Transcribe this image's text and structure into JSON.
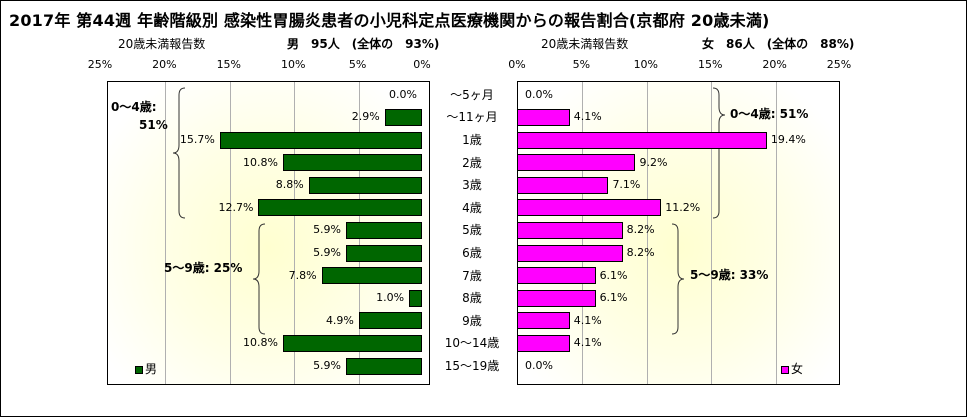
{
  "title": "2017年 第44週 年齢階級別 感染性胃腸炎患者の小児科定点医療機関からの報告割合(京都府 20歳未満)",
  "left_header": {
    "caption": "20歳未満報告数",
    "summary": "男　95人　(全体の　93%)"
  },
  "right_header": {
    "caption": "20歳未満報告数",
    "summary": "女　86人　(全体の　88%)"
  },
  "axis_ticks_left": [
    "25%",
    "20%",
    "15%",
    "10%",
    "5%",
    "0%"
  ],
  "axis_ticks_right": [
    "0%",
    "5%",
    "10%",
    "15%",
    "20%",
    "25%"
  ],
  "legend": {
    "male": "男",
    "female": "女"
  },
  "colors": {
    "male": "#006600",
    "female": "#ff00ff"
  },
  "annotations": {
    "male_0_4_line1": "0～4歳:",
    "male_0_4_line2": "51%",
    "male_5_9": "5～9歳: 25%",
    "female_0_4": "0～4歳: 51%",
    "female_5_9": "5～9歳: 33%"
  },
  "chart_data": {
    "type": "bar",
    "orientation": "horizontal",
    "categories": [
      "～5ヶ月",
      "～11ヶ月",
      "1歳",
      "2歳",
      "3歳",
      "4歳",
      "5歳",
      "6歳",
      "7歳",
      "8歳",
      "9歳",
      "10～14歳",
      "15～19歳"
    ],
    "series": [
      {
        "name": "男",
        "values": [
          0.0,
          2.9,
          15.7,
          10.8,
          8.8,
          12.7,
          5.9,
          5.9,
          7.8,
          1.0,
          4.9,
          10.8,
          5.9
        ],
        "labels": [
          "0.0%",
          "2.9%",
          "15.7%",
          "10.8%",
          "8.8%",
          "12.7%",
          "5.9%",
          "5.9%",
          "7.8%",
          "1.0%",
          "4.9%",
          "10.8%",
          "5.9%"
        ]
      },
      {
        "name": "女",
        "values": [
          0.0,
          4.1,
          19.4,
          9.2,
          7.1,
          11.2,
          8.2,
          8.2,
          6.1,
          6.1,
          4.1,
          4.1,
          0.0
        ],
        "labels": [
          "0.0%",
          "4.1%",
          "19.4%",
          "9.2%",
          "7.1%",
          "11.2%",
          "8.2%",
          "8.2%",
          "6.1%",
          "6.1%",
          "4.1%",
          "4.1%",
          "0.0%"
        ]
      }
    ],
    "xlim": [
      0,
      25
    ],
    "grid": true,
    "legend_position": "bottom-left / bottom-right"
  }
}
